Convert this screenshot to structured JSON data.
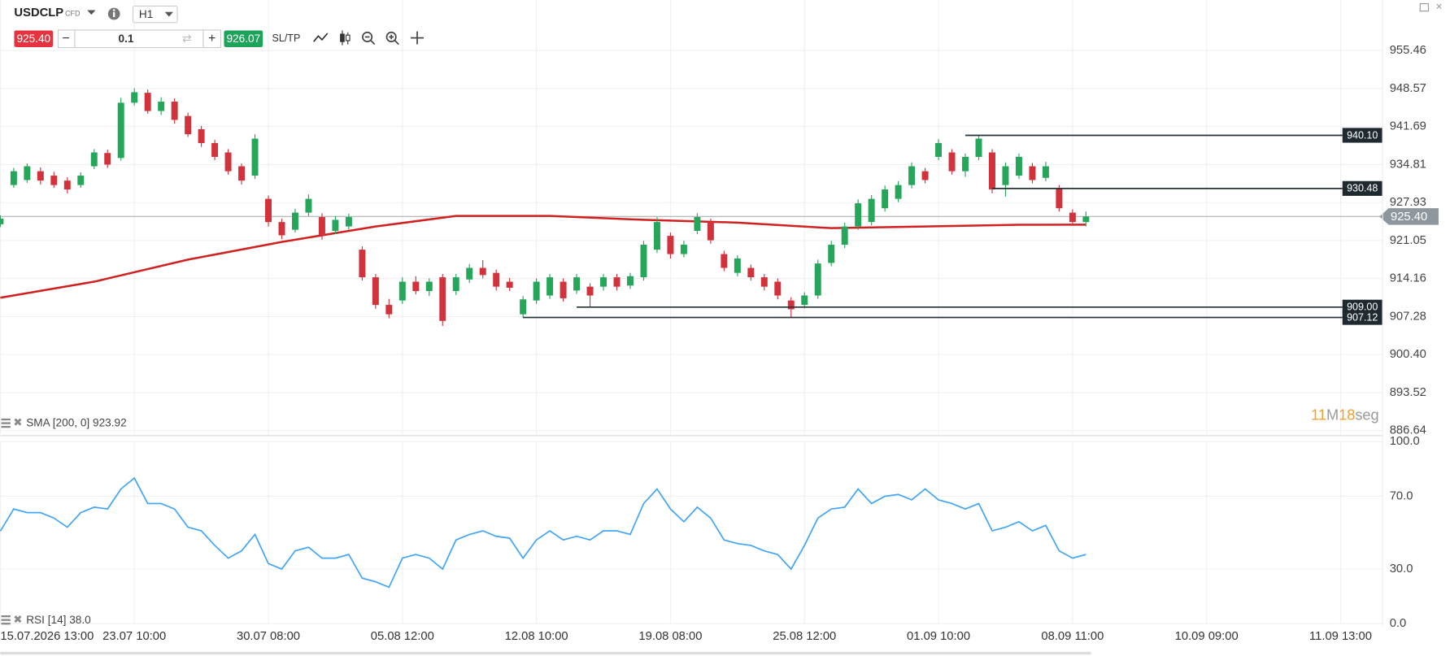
{
  "toolbar": {
    "symbol": "USDCLP",
    "symbol_type": "CFD",
    "timeframe": "H1",
    "sell_price": "925.40",
    "quantity": "0.1",
    "buy_price": "926.07",
    "sltp": "SL/TP"
  },
  "chart_data": [
    {
      "type": "candlestick",
      "x": [
        0,
        1,
        2,
        3,
        4,
        5,
        6,
        7,
        8,
        9,
        10,
        11,
        12,
        13,
        14,
        15,
        16,
        17,
        18,
        19,
        20,
        21,
        22,
        23,
        24,
        25,
        26,
        27,
        28,
        29,
        30,
        31,
        32,
        33,
        34,
        35,
        36,
        37,
        38,
        39,
        40,
        41,
        42,
        43,
        44,
        45,
        46,
        47,
        48,
        49,
        50,
        51,
        52,
        53,
        54,
        55,
        56,
        57,
        58,
        59,
        60,
        61,
        62,
        63,
        64,
        65,
        66,
        67,
        68,
        69,
        70,
        71,
        72,
        73,
        74,
        75,
        76,
        77,
        78,
        79,
        80,
        81
      ],
      "open": [
        924.0,
        931.1,
        932.0,
        933.6,
        932.8,
        931.9,
        931.1,
        934.5,
        936.9,
        936.0,
        946.0,
        947.8,
        944.5,
        946.2,
        943.6,
        941.2,
        938.7,
        937.0,
        934.5,
        932.8,
        928.6,
        924.4,
        923.0,
        926.1,
        925.3,
        922.8,
        923.6,
        919.4,
        914.4,
        909.4,
        910.2,
        913.6,
        911.9,
        914.4,
        911.9,
        914.0,
        916.1,
        915.2,
        913.6,
        907.7,
        910.2,
        911.1,
        913.6,
        912.0,
        912.7,
        912.7,
        914.4,
        912.9,
        914.4,
        919.4,
        921.9,
        918.6,
        922.8,
        924.4,
        918.6,
        915.2,
        916.1,
        914.4,
        913.6,
        910.2,
        909.4,
        911.1,
        917.0,
        920.3,
        923.6,
        924.4,
        926.9,
        928.6,
        931.1,
        933.6,
        936.2,
        937.0,
        933.6,
        936.2,
        937.0,
        931.1,
        932.8,
        934.5,
        932.4,
        930.5,
        926.1,
        924.4
      ],
      "high": [
        925.6,
        934.2,
        935.0,
        934.3,
        933.5,
        932.5,
        933.4,
        937.6,
        937.5,
        946.9,
        948.6,
        948.4,
        947.0,
        946.8,
        944.2,
        941.8,
        939.3,
        937.6,
        935.0,
        940.3,
        929.2,
        925.0,
        926.8,
        929.4,
        926.0,
        925.5,
        925.9,
        920.0,
        915.0,
        910.5,
        914.4,
        914.6,
        914.2,
        915.0,
        915.0,
        916.8,
        917.5,
        915.8,
        914.3,
        911.0,
        914.2,
        915.0,
        914.2,
        915.0,
        913.3,
        915.0,
        915.0,
        915.2,
        921.0,
        925.3,
        922.5,
        921.0,
        926.0,
        925.0,
        919.2,
        918.4,
        916.7,
        915.0,
        914.2,
        910.8,
        911.7,
        917.6,
        921.0,
        924.3,
        928.5,
        929.3,
        931.0,
        931.8,
        935.2,
        934.2,
        939.4,
        937.6,
        936.8,
        940.1,
        937.6,
        935.2,
        936.8,
        935.1,
        935.3,
        931.1,
        926.7,
        926.3
      ],
      "low": [
        923.5,
        930.6,
        931.5,
        931.2,
        930.6,
        929.6,
        930.6,
        934.0,
        934.2,
        935.5,
        945.5,
        944.0,
        943.8,
        942.2,
        939.8,
        938.0,
        935.6,
        933.0,
        931.2,
        932.2,
        923.6,
        921.3,
        922.5,
        925.5,
        921.2,
        922.2,
        923.0,
        913.8,
        908.7,
        907.0,
        909.6,
        911.3,
        911.0,
        905.6,
        911.2,
        913.4,
        914.2,
        912.0,
        911.9,
        907.1,
        909.6,
        910.5,
        910.0,
        911.4,
        909.0,
        912.0,
        912.0,
        912.3,
        913.8,
        918.8,
        917.8,
        918.0,
        922.2,
        920.5,
        915.5,
        914.6,
        913.8,
        912.0,
        910.4,
        907.1,
        908.8,
        910.5,
        916.4,
        919.7,
        923.0,
        923.8,
        926.3,
        928.0,
        930.5,
        931.4,
        935.6,
        933.0,
        932.6,
        935.6,
        929.6,
        929.0,
        932.2,
        931.4,
        931.8,
        926.3,
        923.8,
        923.6
      ],
      "close": [
        925.0,
        933.6,
        934.5,
        931.9,
        931.1,
        930.3,
        932.8,
        937.0,
        934.8,
        946.0,
        947.9,
        944.5,
        946.2,
        942.9,
        940.3,
        938.7,
        936.2,
        933.6,
        931.9,
        939.5,
        924.4,
        922.0,
        926.1,
        928.6,
        922.0,
        924.8,
        925.3,
        914.4,
        909.4,
        907.7,
        913.6,
        911.9,
        913.6,
        906.5,
        914.4,
        916.1,
        914.8,
        912.7,
        912.5,
        910.4,
        913.6,
        914.4,
        910.6,
        914.4,
        911.1,
        914.4,
        912.7,
        914.6,
        920.3,
        924.4,
        918.6,
        920.3,
        925.3,
        921.1,
        916.1,
        917.8,
        914.4,
        912.7,
        911.1,
        908.6,
        911.1,
        916.9,
        920.3,
        923.6,
        927.8,
        928.6,
        930.3,
        931.1,
        934.5,
        932.0,
        938.7,
        933.6,
        936.2,
        939.5,
        930.3,
        934.5,
        936.2,
        932.0,
        934.5,
        926.9,
        924.4,
        925.4
      ],
      "up_color": "#26a65b",
      "down_color": "#d2323c",
      "xlim": [
        0,
        100
      ],
      "xticks": [
        {
          "value": 0,
          "label": "15.07.2026 13:00"
        },
        {
          "value": 10,
          "label": "23.07 10:00"
        },
        {
          "value": 20,
          "label": "30.07 08:00"
        },
        {
          "value": 30,
          "label": "05.08 12:00"
        },
        {
          "value": 40,
          "label": "12.08 10:00"
        },
        {
          "value": 50,
          "label": "19.08 08:00"
        },
        {
          "value": 60,
          "label": "25.08 12:00"
        },
        {
          "value": 70,
          "label": "01.09 10:00"
        },
        {
          "value": 80,
          "label": "08.09 11:00"
        },
        {
          "value": 90,
          "label": "10.09 09:00"
        },
        {
          "value": 100,
          "label": "11.09 13:00"
        }
      ],
      "ylim": [
        885.98,
        964.6
      ],
      "yticks": [
        955.46,
        948.57,
        941.69,
        934.81,
        927.93,
        921.05,
        914.16,
        907.28,
        {
          "value": 900.4,
          "label": "900.40"
        },
        893.52,
        886.64
      ],
      "grid": true,
      "overlay": {
        "name": "SMA [200, 0] 923.92",
        "color": "#d0201f",
        "x": [
          0,
          7,
          14,
          21,
          28,
          34,
          41,
          48,
          55,
          62,
          69,
          76,
          81
        ],
        "values": [
          910.7,
          913.6,
          917.6,
          920.8,
          923.6,
          925.5,
          925.5,
          924.8,
          924.3,
          923.3,
          923.6,
          923.9,
          923.92
        ]
      },
      "levels": [
        {
          "value": 940.1,
          "label": "940.10",
          "x": 72
        },
        {
          "value": 930.48,
          "label": "930.48",
          "x": 74
        },
        {
          "value": 909,
          "label": "909.00",
          "x": 43
        },
        {
          "value": 907.12,
          "label": "907.12",
          "x": 39
        }
      ],
      "current_price": {
        "value": 925.4,
        "label": "925.40"
      },
      "countdown": {
        "minutes": "11",
        "minutes_unit": "M",
        "seconds": "18",
        "seconds_unit": "seg"
      }
    },
    {
      "type": "line",
      "x": [
        0,
        1,
        2,
        3,
        4,
        5,
        6,
        7,
        8,
        9,
        10,
        11,
        12,
        13,
        14,
        15,
        16,
        17,
        18,
        19,
        20,
        21,
        22,
        23,
        24,
        25,
        26,
        27,
        28,
        29,
        30,
        31,
        32,
        33,
        34,
        35,
        36,
        37,
        38,
        39,
        40,
        41,
        42,
        43,
        44,
        45,
        46,
        47,
        48,
        49,
        50,
        51,
        52,
        53,
        54,
        55,
        56,
        57,
        58,
        59,
        60,
        61,
        62,
        63,
        64,
        65,
        66,
        67,
        68,
        69,
        70,
        71,
        72,
        73,
        74,
        75,
        76,
        77,
        78,
        79,
        80,
        81
      ],
      "xlim": [
        0,
        100
      ],
      "series": [
        {
          "name": "RSI [14] 38.0",
          "color": "#42a5f5",
          "values": [
            50.8,
            63,
            61,
            61,
            58,
            53,
            61,
            64,
            63,
            74,
            80,
            66,
            66,
            63,
            53,
            51,
            43,
            36,
            40,
            49,
            33,
            30,
            40,
            42,
            36,
            36,
            38,
            25,
            23,
            20,
            36,
            38,
            36,
            30,
            46,
            49,
            51,
            48,
            47,
            36,
            46,
            51,
            46,
            48,
            46,
            51,
            51,
            49,
            66,
            74,
            63,
            56,
            64,
            58,
            46,
            44,
            43,
            40,
            38,
            30,
            43,
            58,
            63,
            64,
            74,
            66,
            70,
            71,
            68,
            74,
            68,
            66,
            63,
            66,
            51,
            53,
            56,
            51,
            54,
            40,
            36,
            38
          ]
        }
      ],
      "ylim": [
        0,
        100
      ],
      "yticks": [
        {
          "value": 100,
          "label": "100.0"
        },
        {
          "value": 70,
          "label": "70.0"
        },
        {
          "value": 30,
          "label": "30.0"
        },
        {
          "value": 0,
          "label": "0.0"
        }
      ],
      "grid": true
    }
  ]
}
